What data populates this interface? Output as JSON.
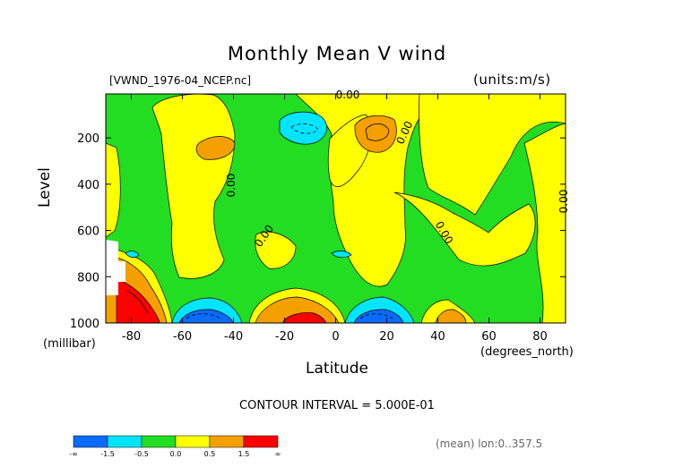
{
  "header": {
    "title": "Monthly Mean V wind",
    "file_label": "[VWND_1976-04_NCEP.nc]",
    "units_label": "(units:m/s)"
  },
  "footer": {
    "contour_interval": "CONTOUR INTERVAL = 5.000E-01",
    "mean_label": "(mean) lon:0..357.5"
  },
  "chart_data": {
    "type": "heatmap",
    "title": "Monthly Mean V wind",
    "xlabel": "Latitude",
    "xunit": "(degrees_north)",
    "ylabel": "Level",
    "yunit": "(millibar)",
    "xlim": [
      -90,
      90
    ],
    "ylim": [
      1000,
      10
    ],
    "x_ticks": [
      -80,
      -60,
      -40,
      -20,
      0,
      20,
      40,
      60,
      80
    ],
    "y_ticks": [
      200,
      400,
      600,
      800,
      1000
    ],
    "contour_labels": [
      "0.00",
      "0.00",
      "0.00",
      "0.00",
      "0.00",
      "0.00"
    ],
    "colorbar": {
      "colors": [
        "#0a6bff",
        "#00e5ff",
        "#22dd22",
        "#ffff00",
        "#f5a000",
        "#ff0000"
      ],
      "labels": [
        "-∞",
        "-1.5",
        "-0.5",
        "0.0",
        "0.5",
        "1.5",
        "∞"
      ]
    }
  }
}
